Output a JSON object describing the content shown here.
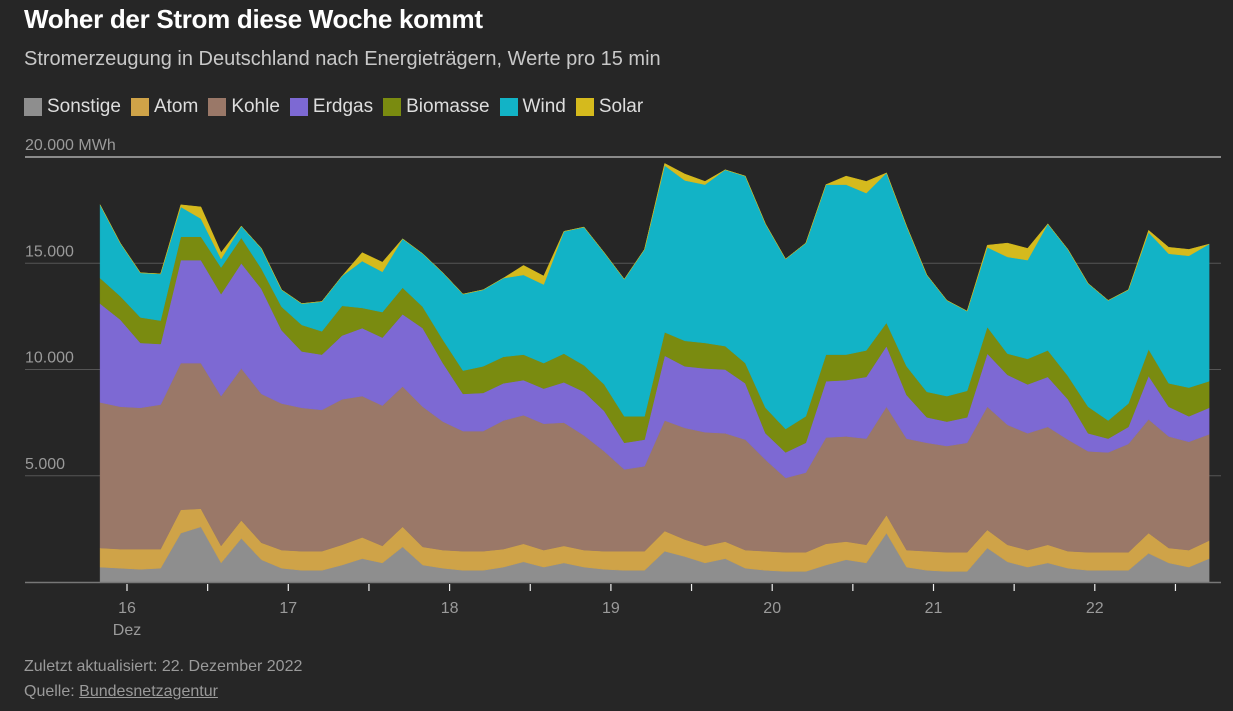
{
  "header": {
    "title": "Woher der Strom diese Woche kommt",
    "subtitle": "Stromerzeugung in Deutschland nach Energieträgern, Werte pro 15 min"
  },
  "footer": {
    "updated": "Zuletzt aktualisiert: 22. Dezember 2022",
    "source_label": "Quelle: ",
    "source_link": "Bundesnetzagentur"
  },
  "chart_data": {
    "type": "area",
    "stacked": true,
    "title": "Woher der Strom diese Woche kommt",
    "subtitle": "Stromerzeugung in Deutschland nach Energieträgern, Werte pro 15 min",
    "ylabel_unit": "MWh",
    "ylim": [
      0,
      20000
    ],
    "y_ticks": [
      {
        "value": 5000,
        "label": "5.000"
      },
      {
        "value": 10000,
        "label": "10.000"
      },
      {
        "value": 15000,
        "label": "15.000"
      },
      {
        "value": 20000,
        "label": "20.000 MWh"
      }
    ],
    "x_ticks": [
      {
        "date": "2022-12-16",
        "label": "16",
        "sublabel": "Dez"
      },
      {
        "date": "2022-12-17",
        "label": "17"
      },
      {
        "date": "2022-12-18",
        "label": "18"
      },
      {
        "date": "2022-12-19",
        "label": "19"
      },
      {
        "date": "2022-12-20",
        "label": "20"
      },
      {
        "date": "2022-12-21",
        "label": "21"
      },
      {
        "date": "2022-12-22",
        "label": "22"
      }
    ],
    "grid": "horizontal",
    "legend_position": "top-left",
    "x_start": "2022-12-15T20:00",
    "x_step_hours": 3,
    "series": [
      {
        "name": "Sonstige",
        "color": "#8e8e8e",
        "values": [
          700,
          650,
          600,
          650,
          2300,
          2600,
          900,
          2050,
          1050,
          650,
          550,
          550,
          800,
          1100,
          900,
          1650,
          800,
          650,
          550,
          550,
          700,
          950,
          700,
          900,
          700,
          600,
          550,
          550,
          1450,
          1200,
          900,
          1100,
          650,
          550,
          500,
          500,
          800,
          1050,
          900,
          2300,
          700,
          550,
          500,
          500,
          1600,
          950,
          700,
          900,
          650,
          550,
          550,
          550,
          1350,
          900,
          700,
          1100
        ]
      },
      {
        "name": "Atom",
        "color": "#cfa348",
        "values": [
          900,
          900,
          950,
          900,
          1100,
          850,
          800,
          850,
          800,
          850,
          900,
          900,
          950,
          1000,
          800,
          950,
          850,
          850,
          900,
          900,
          850,
          850,
          800,
          800,
          800,
          850,
          900,
          900,
          950,
          800,
          800,
          800,
          850,
          900,
          900,
          900,
          1000,
          850,
          850,
          850,
          800,
          900,
          900,
          900,
          850,
          800,
          800,
          850,
          800,
          850,
          850,
          850,
          950,
          700,
          800,
          850
        ]
      },
      {
        "name": "Kohle",
        "color": "#9a7868",
        "values": [
          6850,
          6700,
          6650,
          6800,
          6900,
          6850,
          7050,
          7150,
          7000,
          6900,
          6750,
          6650,
          6850,
          6650,
          6600,
          6600,
          6600,
          6050,
          5650,
          5650,
          6050,
          6050,
          5950,
          5800,
          5400,
          4700,
          3850,
          4000,
          5200,
          5250,
          5350,
          5100,
          5200,
          4300,
          3500,
          3750,
          5000,
          4950,
          5000,
          5100,
          5250,
          5100,
          5000,
          5150,
          5800,
          5650,
          5500,
          5550,
          5250,
          4750,
          4700,
          5100,
          5350,
          5250,
          5100,
          5000
        ]
      },
      {
        "name": "Erdgas",
        "color": "#7d69d3",
        "values": [
          4650,
          4100,
          3050,
          2850,
          4850,
          4850,
          4800,
          4950,
          4950,
          3450,
          2650,
          2600,
          3000,
          3200,
          3200,
          3400,
          3700,
          2750,
          1750,
          1800,
          1750,
          1650,
          1650,
          1900,
          2050,
          1900,
          1250,
          1250,
          3050,
          2900,
          3000,
          3000,
          2650,
          1250,
          1200,
          1400,
          2650,
          2650,
          2900,
          2850,
          2050,
          1200,
          1150,
          1200,
          2500,
          2350,
          2300,
          2350,
          1900,
          850,
          650,
          800,
          2050,
          1400,
          1200,
          1250
        ]
      },
      {
        "name": "Biomasse",
        "color": "#7a8b10",
        "values": [
          1200,
          1100,
          1200,
          1100,
          1100,
          1100,
          1250,
          1200,
          950,
          1100,
          1250,
          1100,
          1400,
          950,
          1200,
          1250,
          1000,
          1100,
          1100,
          1250,
          1250,
          1200,
          1200,
          1350,
          1250,
          1250,
          1250,
          1100,
          1100,
          1200,
          1200,
          1100,
          950,
          1200,
          1100,
          1250,
          1250,
          1200,
          1250,
          1100,
          1350,
          1200,
          1200,
          1250,
          1250,
          1000,
          1200,
          1250,
          1100,
          1250,
          850,
          1100,
          1250,
          1100,
          1350,
          1250
        ]
      },
      {
        "name": "Wind",
        "color": "#12b3c6",
        "values": [
          3450,
          2500,
          2100,
          2200,
          1400,
          850,
          400,
          550,
          950,
          800,
          1000,
          1400,
          1400,
          2200,
          1900,
          2300,
          2500,
          3150,
          3600,
          3600,
          3700,
          3750,
          3700,
          5750,
          6500,
          6200,
          6450,
          7850,
          7850,
          7550,
          7450,
          8300,
          8800,
          8650,
          8000,
          8150,
          8000,
          8000,
          7400,
          7050,
          6600,
          5500,
          4500,
          3750,
          3750,
          4550,
          4650,
          5950,
          5950,
          5800,
          5650,
          5350,
          5500,
          6100,
          6200,
          6450
        ]
      },
      {
        "name": "Solar",
        "color": "#d5ba1d",
        "values": [
          0,
          0,
          0,
          0,
          100,
          550,
          300,
          0,
          0,
          0,
          0,
          0,
          0,
          400,
          450,
          0,
          0,
          0,
          0,
          0,
          0,
          450,
          400,
          0,
          0,
          0,
          0,
          0,
          100,
          300,
          150,
          0,
          0,
          0,
          0,
          0,
          0,
          400,
          550,
          0,
          0,
          0,
          0,
          0,
          100,
          650,
          550,
          0,
          0,
          0,
          0,
          0,
          100,
          300,
          300,
          0
        ]
      }
    ]
  }
}
